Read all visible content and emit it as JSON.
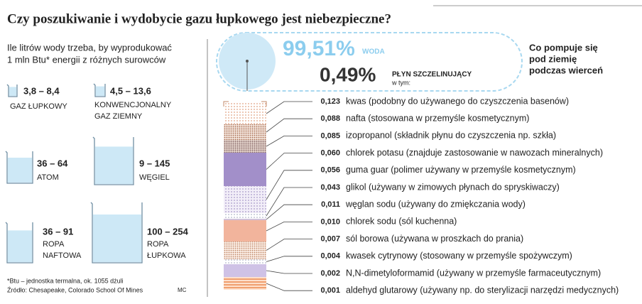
{
  "header": {
    "title": "Czy poszukiwanie i wydobycie gazu łupkowego jest niebezpieczne?"
  },
  "water": {
    "subtitle": [
      "Ile litrów wody trzeba, by wyprodukować",
      "1 mln Btu* energii z różnych surowców"
    ],
    "sources": [
      {
        "range": "3,8 – 8,4",
        "label": [
          "GAZ ŁUPKOWY"
        ]
      },
      {
        "range": "4,5 – 13,6",
        "label": [
          "KONWENCJONALNY",
          "GAZ ZIEMNY"
        ]
      },
      {
        "range": "36 – 64",
        "label": [
          "ATOM"
        ]
      },
      {
        "range": "9 – 145",
        "label": [
          "WĘGIEL"
        ]
      },
      {
        "range": "36 – 91",
        "label": [
          "ROPA",
          "NAFTOWA"
        ]
      },
      {
        "range": "100 – 254",
        "label": [
          "ROPA",
          "ŁUPKOWA"
        ]
      }
    ]
  },
  "footer": {
    "note": "*Btu – jednostka termalna, ok. 1055 dżuli",
    "source": "Źródło: Chesapeake, Colorado School Of Mines",
    "author": "MC"
  },
  "fluid": {
    "water_percent": "99,51%",
    "water_label": "WODA",
    "fluid_percent": "0,49%",
    "fluid_label": "PŁYN SZCZELINUJĄCY",
    "of_which": "w tym:",
    "caption": [
      "Co pompuje się",
      "pod ziemię",
      "podczas wierceń"
    ],
    "items": [
      {
        "value": "0,123",
        "name": "kwas (podobny do używanego do czyszczenia basenów)"
      },
      {
        "value": "0,088",
        "name": "nafta (stosowana w przemyśle kosmetycznym)"
      },
      {
        "value": "0,085",
        "name": "izopropanol (składnik płynu do czyszczenia np. szkła)"
      },
      {
        "value": "0,060",
        "name": "chlorek potasu (znajduje zastosowanie w nawozach mineralnych)"
      },
      {
        "value": "0,056",
        "name": "guma guar (polimer używany w przemyśle kosmetycznym)"
      },
      {
        "value": "0,043",
        "name": "glikol (używany w zimowych płynach do spryskiwaczy)"
      },
      {
        "value": "0,011",
        "name": "węglan sodu (używany do zmiękczania wody)"
      },
      {
        "value": "0,010",
        "name": "chlorek sodu (sól kuchenna)"
      },
      {
        "value": "0,007",
        "name": "sól borowa (używana w proszkach do prania)"
      },
      {
        "value": "0,004",
        "name": "kwasek cytrynowy (stosowany w przemyśle spożywczym)"
      },
      {
        "value": "0,002",
        "name": "N,N-dimetyloformamid (używany w przemyśle farmaceutycznym)"
      },
      {
        "value": "0,001",
        "name": "aldehyd glutarowy (używany np. do sterylizacji narzędzi medycznych)"
      }
    ]
  }
}
